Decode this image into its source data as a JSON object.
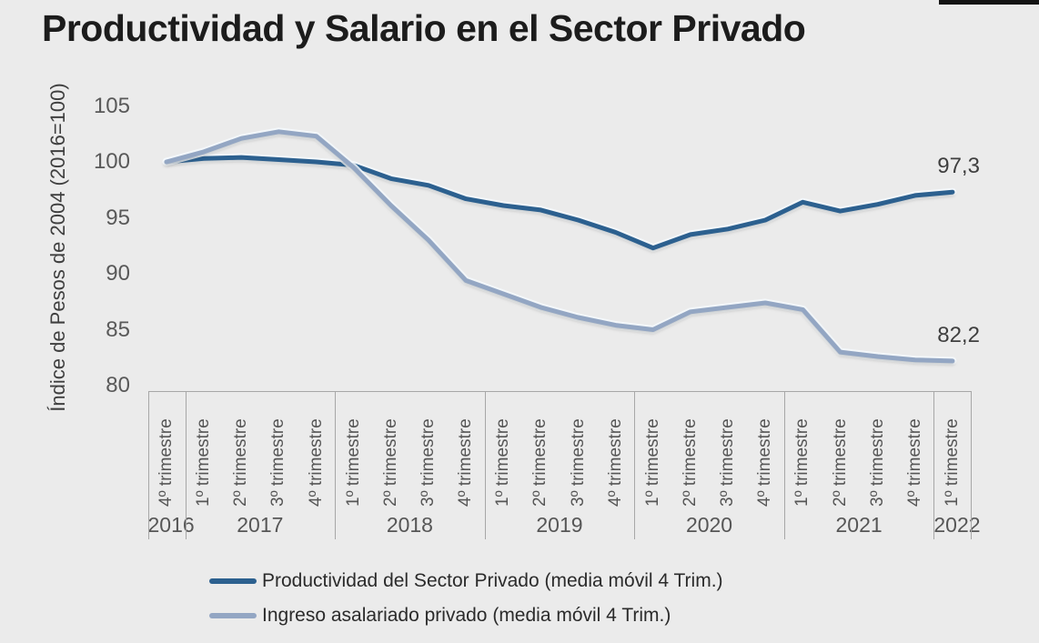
{
  "chart_data": {
    "type": "line",
    "title": "Productividad y Salario en el Sector Privado",
    "ylabel": "Índice de Pesos de 2004 (2016=100)",
    "ylim": [
      80,
      105
    ],
    "yticks": [
      105,
      100,
      95,
      90,
      85,
      80
    ],
    "grid": false,
    "legend_position": "bottom",
    "background_color": "#ebebeb",
    "categories": [
      "4º trimestre",
      "1º trimestre",
      "2º trimestre",
      "3º trimestre",
      "4º trimestre",
      "1º trimestre",
      "2º trimestre",
      "3º trimestre",
      "4º trimestre",
      "1º trimestre",
      "2º trimestre",
      "3º trimestre",
      "4º trimestre",
      "1º trimestre",
      "2º trimestre",
      "3º trimestre",
      "4º trimestre",
      "1º trimestre",
      "2º trimestre",
      "3º trimestre",
      "4º trimestre",
      "1º trimestre"
    ],
    "year_groups": [
      {
        "label": "2016",
        "count": 1
      },
      {
        "label": "2017",
        "count": 4
      },
      {
        "label": "2018",
        "count": 4
      },
      {
        "label": "2019",
        "count": 4
      },
      {
        "label": "2020",
        "count": 4
      },
      {
        "label": "2021",
        "count": 4
      },
      {
        "label": "2022",
        "count": 1
      }
    ],
    "series": [
      {
        "name": "Productividad del Sector Privado (media móvil 4 Trim.)",
        "color": "#2c608f",
        "end_label": "97,3",
        "values": [
          100.0,
          100.3,
          100.4,
          100.2,
          100.0,
          99.7,
          98.5,
          97.9,
          96.7,
          96.1,
          95.7,
          94.8,
          93.7,
          92.3,
          93.5,
          94.0,
          94.8,
          96.4,
          95.6,
          96.2,
          97.0,
          97.3
        ]
      },
      {
        "name": "Ingreso asalariado privado (media móvil 4 Trim.)",
        "color": "#93a6c3",
        "end_label": "82,2",
        "values": [
          100.0,
          100.9,
          102.1,
          102.7,
          102.3,
          99.5,
          96.1,
          93.0,
          89.4,
          88.2,
          87.0,
          86.1,
          85.4,
          85.0,
          86.6,
          87.0,
          87.4,
          86.8,
          83.0,
          82.6,
          82.3,
          82.2
        ]
      }
    ]
  }
}
